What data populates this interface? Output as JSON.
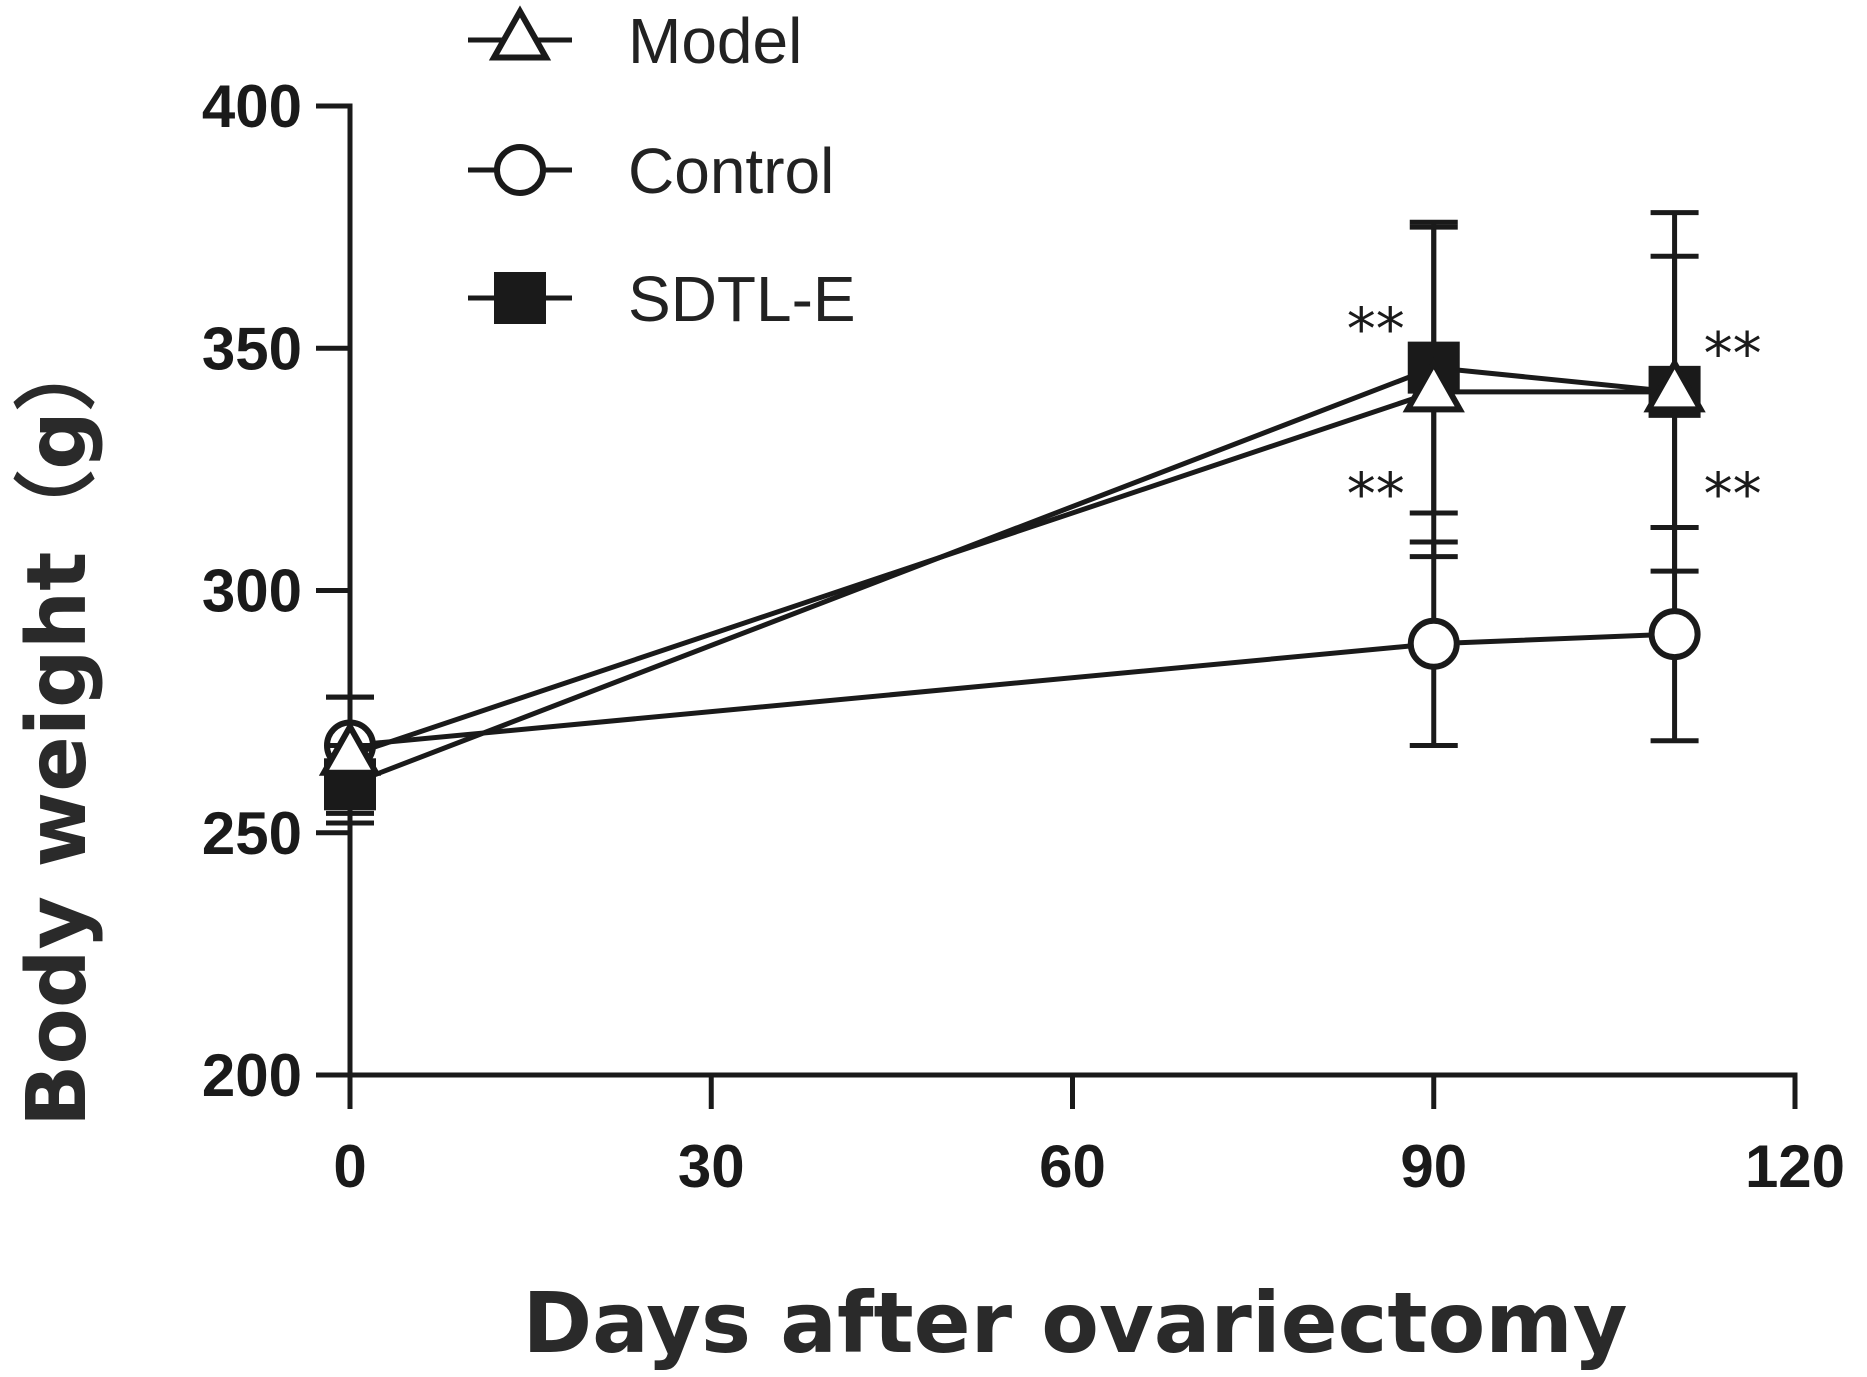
{
  "chart_data": {
    "type": "line",
    "xlabel": "Days after ovariectomy",
    "ylabel": "Body weight（g）",
    "xlim": [
      0,
      120
    ],
    "ylim": [
      200,
      400
    ],
    "xticks": [
      0,
      30,
      60,
      90,
      120
    ],
    "yticks": [
      200,
      250,
      300,
      350,
      400
    ],
    "x": [
      0,
      90,
      110
    ],
    "legend_position": "top-left",
    "series": [
      {
        "name": "Model",
        "marker": "triangle-open",
        "values": [
          266,
          341,
          341
        ],
        "error": [
          12,
          34,
          37
        ]
      },
      {
        "name": "Control",
        "marker": "circle-open",
        "values": [
          268,
          289,
          291
        ],
        "error": [
          10,
          21,
          22
        ]
      },
      {
        "name": "SDTL-E",
        "marker": "square-filled",
        "values": [
          260,
          346,
          341
        ],
        "error": [
          8,
          30,
          28
        ]
      }
    ],
    "annotations": [
      {
        "text": "**",
        "x": 90,
        "y": 356,
        "side": "left"
      },
      {
        "text": "**",
        "x": 90,
        "y": 322,
        "side": "left"
      },
      {
        "text": "**",
        "x": 110,
        "y": 351,
        "side": "right"
      },
      {
        "text": "**",
        "x": 110,
        "y": 322,
        "side": "right"
      }
    ]
  }
}
